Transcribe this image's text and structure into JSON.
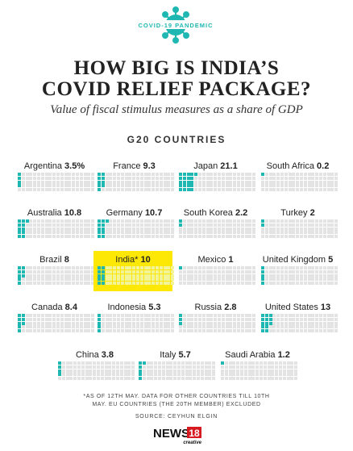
{
  "header": {
    "badge_text": "COVID-19 PANDEMIC",
    "title_line1": "HOW BIG IS INDIA’S",
    "title_line2": "COVID RELIEF PACKAGE?",
    "subtitle": "Value of fiscal stimulus measures as a share of GDP",
    "section": "G20 COUNTRIES"
  },
  "colors": {
    "filled": "#1fb7b2",
    "empty": "#e3e3e3",
    "highlight": "#fde805"
  },
  "chart_data": {
    "type": "waffle",
    "title": "HOW BIG IS INDIA’S COVID RELIEF PACKAGE?",
    "subtitle": "Value of fiscal stimulus measures as a share of GDP",
    "units": "% of GDP",
    "grid": {
      "columns": 20,
      "rows": 5,
      "total_cells": 100
    },
    "countries": [
      {
        "name": "Argentina",
        "value": 3.5,
        "value_label": "3.5%"
      },
      {
        "name": "France",
        "value": 9.3,
        "value_label": "9.3"
      },
      {
        "name": "Japan",
        "value": 21.1,
        "value_label": "21.1"
      },
      {
        "name": "South Africa",
        "value": 0.2,
        "value_label": "0.2"
      },
      {
        "name": "Australia",
        "value": 10.8,
        "value_label": "10.8"
      },
      {
        "name": "Germany",
        "value": 10.7,
        "value_label": "10.7"
      },
      {
        "name": "South Korea",
        "value": 2.2,
        "value_label": "2.2"
      },
      {
        "name": "Turkey",
        "value": 2,
        "value_label": "2"
      },
      {
        "name": "Brazil",
        "value": 8,
        "value_label": "8"
      },
      {
        "name": "India*",
        "value": 10,
        "value_label": "10",
        "highlight": true
      },
      {
        "name": "Mexico",
        "value": 1,
        "value_label": "1"
      },
      {
        "name": "United Kingdom",
        "value": 5,
        "value_label": "5"
      },
      {
        "name": "Canada",
        "value": 8.4,
        "value_label": "8.4"
      },
      {
        "name": "Indonesia",
        "value": 5.3,
        "value_label": "5.3"
      },
      {
        "name": "Russia",
        "value": 2.8,
        "value_label": "2.8"
      },
      {
        "name": "United States",
        "value": 13,
        "value_label": "13"
      },
      {
        "name": "China",
        "value": 3.8,
        "value_label": "3.8"
      },
      {
        "name": "Italy",
        "value": 5.7,
        "value_label": "5.7"
      },
      {
        "name": "Saudi Arabia",
        "value": 1.2,
        "value_label": "1.2"
      }
    ]
  },
  "footer": {
    "note_line1": "*AS OF 12TH MAY. DATA FOR OTHER COUNTRIES TILL 10TH",
    "note_line2": "MAY. EU COUNTRIES (THE 20TH MEMBER) EXCLUDED",
    "source": "SOURCE: CEYHUN ELGIN",
    "logo_main": "NEWS",
    "logo_number": "18",
    "logo_sub": "creative"
  }
}
